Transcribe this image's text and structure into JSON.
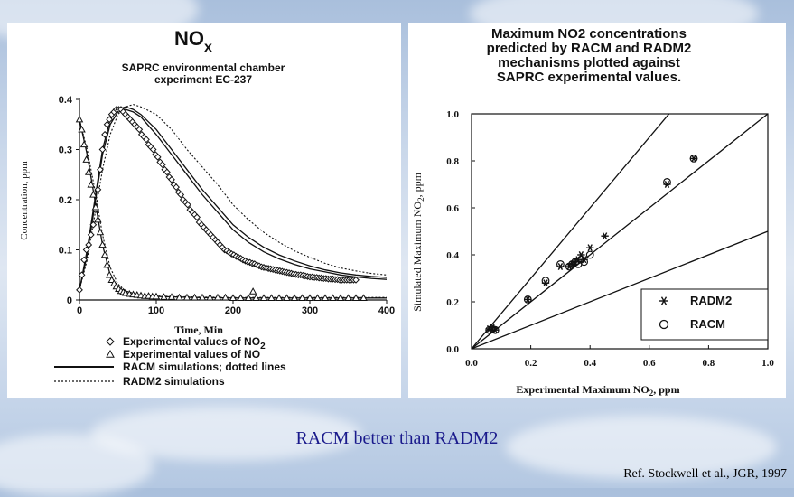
{
  "slide": {
    "caption": "RACM better than RADM2",
    "citation": "Ref. Stockwell et al., JGR, 1997"
  },
  "chart_data": [
    {
      "type": "line",
      "title": "NOx",
      "title_main": "NO",
      "title_sub": "x",
      "subtitle_line1": "SAPRC environmental chamber",
      "subtitle_line2": "experiment EC-237",
      "xlabel": "Time, Min",
      "ylabel": "Concentration, ppm",
      "xlim": [
        0,
        400
      ],
      "ylim": [
        0,
        0.4
      ],
      "xticks": [
        "0",
        "100",
        "200",
        "300",
        "400"
      ],
      "yticks": [
        "0",
        "0.1",
        "0.2",
        "0.3",
        "0.4"
      ],
      "legend": [
        {
          "marker": "diamond",
          "label": "Experimental values of NO",
          "sub": "2"
        },
        {
          "marker": "triangle",
          "label": "Experimental values of NO",
          "sub": ""
        },
        {
          "marker": "solid",
          "label": "RACM simulations; dotted lines",
          "sub": ""
        },
        {
          "marker": "dotted",
          "label": "RADM2 simulations",
          "sub": ""
        }
      ],
      "series": [
        {
          "name": "Experimental NO2",
          "marker": "diamond",
          "x": [
            0,
            3,
            6,
            9,
            12,
            15,
            18,
            21,
            24,
            27,
            30,
            33,
            36,
            39,
            42,
            45,
            48,
            51,
            54,
            57,
            60,
            63,
            66,
            69,
            72,
            75,
            78,
            81,
            84,
            87,
            90,
            93,
            96,
            99,
            102,
            105,
            108,
            111,
            114,
            117,
            120,
            123,
            126,
            129,
            132,
            135,
            138,
            141,
            144,
            147,
            150,
            153,
            156,
            159,
            162,
            165,
            168,
            171,
            174,
            177,
            180,
            183,
            186,
            189,
            192,
            195,
            198,
            201,
            204,
            207,
            210,
            213,
            216,
            219,
            222,
            225,
            228,
            231,
            234,
            237,
            240,
            243,
            246,
            249,
            252,
            255,
            258,
            261,
            264,
            267,
            270,
            273,
            276,
            279,
            282,
            285,
            288,
            291,
            294,
            297,
            300,
            303,
            306,
            309,
            312,
            315,
            318,
            321,
            324,
            327,
            330,
            333,
            336,
            339,
            342,
            345,
            348,
            351,
            354,
            357,
            360
          ],
          "y": [
            0.02,
            0.05,
            0.08,
            0.1,
            0.11,
            0.13,
            0.15,
            0.18,
            0.22,
            0.26,
            0.3,
            0.33,
            0.35,
            0.36,
            0.37,
            0.375,
            0.38,
            0.38,
            0.38,
            0.375,
            0.37,
            0.365,
            0.36,
            0.355,
            0.35,
            0.345,
            0.34,
            0.33,
            0.325,
            0.32,
            0.31,
            0.305,
            0.3,
            0.29,
            0.285,
            0.275,
            0.27,
            0.26,
            0.255,
            0.245,
            0.24,
            0.23,
            0.225,
            0.215,
            0.21,
            0.2,
            0.195,
            0.19,
            0.18,
            0.175,
            0.17,
            0.165,
            0.155,
            0.15,
            0.145,
            0.14,
            0.135,
            0.13,
            0.125,
            0.12,
            0.115,
            0.11,
            0.105,
            0.1,
            0.098,
            0.095,
            0.092,
            0.09,
            0.087,
            0.085,
            0.083,
            0.08,
            0.078,
            0.076,
            0.075,
            0.073,
            0.072,
            0.07,
            0.068,
            0.066,
            0.065,
            0.064,
            0.063,
            0.062,
            0.061,
            0.06,
            0.059,
            0.058,
            0.057,
            0.056,
            0.055,
            0.054,
            0.053,
            0.052,
            0.051,
            0.05,
            0.05,
            0.049,
            0.048,
            0.047,
            0.046,
            0.046,
            0.045,
            0.045,
            0.044,
            0.044,
            0.043,
            0.043,
            0.042,
            0.042,
            0.042,
            0.041,
            0.041,
            0.04,
            0.04,
            0.04,
            0.04,
            0.04,
            0.04,
            0.04,
            0.04
          ]
        },
        {
          "name": "Experimental NO",
          "marker": "triangle",
          "x": [
            0,
            3,
            6,
            9,
            12,
            15,
            18,
            21,
            24,
            27,
            30,
            33,
            36,
            39,
            42,
            45,
            48,
            51,
            54,
            57,
            60,
            65,
            70,
            75,
            80,
            85,
            90,
            95,
            100,
            110,
            120,
            130,
            140,
            150,
            160,
            170,
            180,
            190,
            200,
            210,
            220,
            226,
            230,
            240,
            250,
            260,
            270,
            280,
            290,
            300,
            310,
            320,
            330,
            340,
            350,
            360,
            370
          ],
          "y": [
            0.36,
            0.34,
            0.31,
            0.28,
            0.255,
            0.23,
            0.21,
            0.185,
            0.16,
            0.135,
            0.11,
            0.09,
            0.07,
            0.05,
            0.04,
            0.033,
            0.027,
            0.022,
            0.018,
            0.016,
            0.014,
            0.012,
            0.011,
            0.01,
            0.009,
            0.008,
            0.008,
            0.007,
            0.007,
            0.006,
            0.006,
            0.005,
            0.005,
            0.005,
            0.005,
            0.005,
            0.005,
            0.005,
            0.004,
            0.004,
            0.004,
            0.017,
            0.004,
            0.004,
            0.004,
            0.004,
            0.004,
            0.004,
            0.004,
            0.004,
            0.004,
            0.004,
            0.004,
            0.004,
            0.004,
            0.004,
            0.004
          ]
        },
        {
          "name": "RACM NO2",
          "style": "solid",
          "x": [
            0,
            10,
            20,
            30,
            40,
            50,
            60,
            70,
            80,
            100,
            120,
            140,
            160,
            180,
            200,
            220,
            240,
            260,
            280,
            300,
            320,
            340,
            360,
            380,
            400
          ],
          "y": [
            0.02,
            0.1,
            0.2,
            0.3,
            0.36,
            0.38,
            0.385,
            0.38,
            0.37,
            0.34,
            0.3,
            0.26,
            0.22,
            0.185,
            0.15,
            0.125,
            0.105,
            0.09,
            0.078,
            0.068,
            0.06,
            0.054,
            0.05,
            0.047,
            0.045
          ]
        },
        {
          "name": "RACM NO2 (b)",
          "style": "solid",
          "x": [
            0,
            10,
            20,
            30,
            40,
            50,
            60,
            70,
            80,
            100,
            120,
            140,
            160,
            180,
            200,
            220,
            240,
            260,
            280,
            300,
            320,
            340,
            360,
            380,
            400
          ],
          "y": [
            0.02,
            0.09,
            0.19,
            0.29,
            0.35,
            0.375,
            0.38,
            0.375,
            0.365,
            0.33,
            0.29,
            0.25,
            0.21,
            0.175,
            0.14,
            0.115,
            0.096,
            0.082,
            0.071,
            0.062,
            0.056,
            0.05,
            0.046,
            0.043,
            0.041
          ]
        },
        {
          "name": "RADM2 NO2",
          "style": "dotted",
          "x": [
            0,
            10,
            20,
            30,
            40,
            50,
            60,
            70,
            80,
            100,
            120,
            140,
            160,
            180,
            200,
            220,
            240,
            260,
            280,
            300,
            320,
            340,
            360,
            380,
            400
          ],
          "y": [
            0.02,
            0.08,
            0.17,
            0.26,
            0.33,
            0.37,
            0.385,
            0.39,
            0.385,
            0.37,
            0.34,
            0.3,
            0.265,
            0.23,
            0.19,
            0.16,
            0.135,
            0.115,
            0.098,
            0.085,
            0.073,
            0.064,
            0.058,
            0.053,
            0.05
          ]
        },
        {
          "name": "RACM NO",
          "style": "solid",
          "x": [
            0,
            10,
            20,
            30,
            40,
            50,
            60,
            80,
            100,
            150,
            200,
            250,
            300,
            350,
            400
          ],
          "y": [
            0.36,
            0.29,
            0.2,
            0.11,
            0.05,
            0.025,
            0.015,
            0.009,
            0.007,
            0.005,
            0.004,
            0.004,
            0.004,
            0.004,
            0.004
          ]
        },
        {
          "name": "RADM2 NO",
          "style": "dotted",
          "x": [
            0,
            10,
            20,
            30,
            40,
            50,
            60,
            80,
            100,
            150,
            200,
            250,
            300,
            350,
            400
          ],
          "y": [
            0.36,
            0.3,
            0.22,
            0.13,
            0.065,
            0.032,
            0.018,
            0.01,
            0.008,
            0.006,
            0.005,
            0.005,
            0.005,
            0.005,
            0.005
          ]
        }
      ]
    },
    {
      "type": "scatter",
      "title_lines": [
        "Maximum NO2 concentrations",
        "predicted by RACM and RADM2",
        "mechanisms plotted against",
        "SAPRC experimental values."
      ],
      "xlabel": "Experimental Maximum NO",
      "xlabel_sub": "2",
      "xlabel_unit": ", ppm",
      "ylabel": "Simulated Maximum NO",
      "ylabel_sub": "2",
      "ylabel_unit": ", ppm",
      "xlim": [
        0,
        1.0
      ],
      "ylim": [
        0,
        1.0
      ],
      "xticks": [
        "0.0",
        "0.2",
        "0.4",
        "0.6",
        "0.8",
        "1.0"
      ],
      "yticks": [
        "0.0",
        "0.2",
        "0.4",
        "0.6",
        "0.8",
        "1.0"
      ],
      "reference_lines": [
        {
          "name": "1:2 line",
          "slope": 0.5
        },
        {
          "name": "1:1 line",
          "slope": 1.0
        },
        {
          "name": "1.5:1 line",
          "slope": 1.5
        }
      ],
      "legend": [
        {
          "marker": "asterisk",
          "label": "RADM2"
        },
        {
          "marker": "circle",
          "label": "RACM"
        }
      ],
      "series": [
        {
          "name": "RADM2",
          "marker": "asterisk",
          "x": [
            0.06,
            0.07,
            0.08,
            0.19,
            0.25,
            0.3,
            0.33,
            0.34,
            0.35,
            0.36,
            0.37,
            0.38,
            0.4,
            0.45,
            0.66,
            0.75
          ],
          "y": [
            0.085,
            0.09,
            0.08,
            0.21,
            0.28,
            0.35,
            0.35,
            0.36,
            0.37,
            0.38,
            0.4,
            0.38,
            0.43,
            0.48,
            0.7,
            0.81
          ]
        },
        {
          "name": "RACM",
          "marker": "circle",
          "x": [
            0.06,
            0.07,
            0.08,
            0.19,
            0.25,
            0.3,
            0.33,
            0.34,
            0.35,
            0.36,
            0.37,
            0.38,
            0.4,
            0.66,
            0.75
          ],
          "y": [
            0.08,
            0.085,
            0.08,
            0.21,
            0.29,
            0.36,
            0.35,
            0.36,
            0.37,
            0.36,
            0.38,
            0.37,
            0.4,
            0.71,
            0.81
          ]
        }
      ]
    }
  ]
}
